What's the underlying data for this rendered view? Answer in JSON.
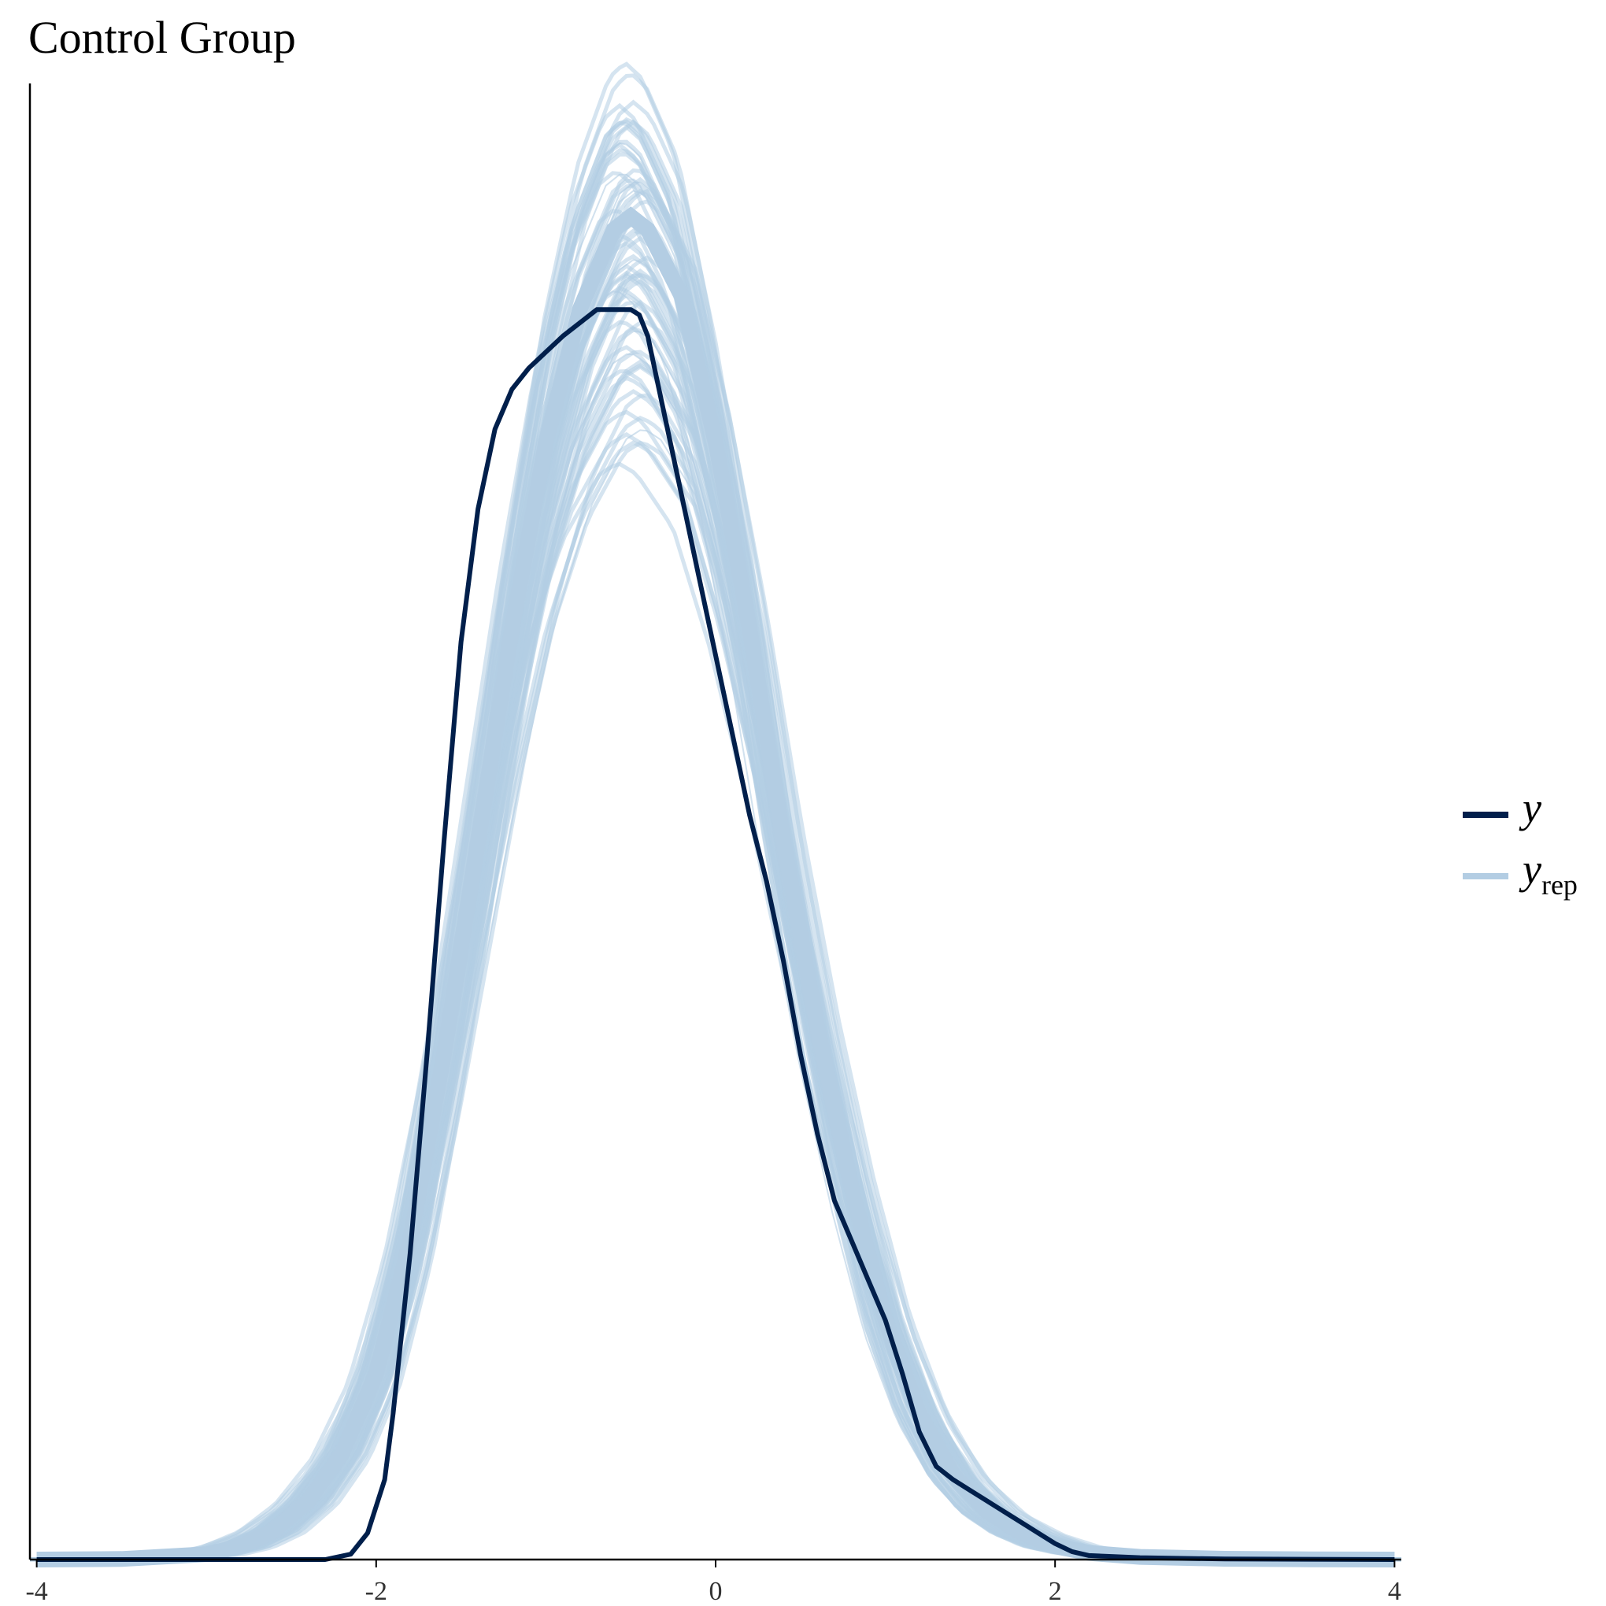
{
  "chart_data": {
    "type": "line",
    "title": "Control Group",
    "xlabel": "",
    "ylabel": "",
    "xlim": [
      -4.04,
      4.04
    ],
    "ylim": [
      0,
      0.555
    ],
    "x_ticks": [
      "-4",
      "-2",
      "0",
      "2",
      "4"
    ],
    "x_tick_values": [
      -4,
      -2,
      0,
      2,
      4
    ],
    "grid": false,
    "legend_position": "right",
    "series": [
      {
        "name": "y",
        "color": "#011f4b",
        "x": [
          -4.0,
          -3.0,
          -2.3,
          -2.15,
          -2.05,
          -1.95,
          -1.9,
          -1.8,
          -1.7,
          -1.6,
          -1.5,
          -1.4,
          -1.3,
          -1.2,
          -1.1,
          -1.0,
          -0.9,
          -0.8,
          -0.7,
          -0.6,
          -0.5,
          -0.45,
          -0.4,
          -0.35,
          -0.3,
          -0.2,
          -0.1,
          0.0,
          0.1,
          0.2,
          0.3,
          0.4,
          0.5,
          0.6,
          0.7,
          0.8,
          0.9,
          1.0,
          1.1,
          1.2,
          1.3,
          1.4,
          1.5,
          1.6,
          1.7,
          1.8,
          1.9,
          2.0,
          2.1,
          2.2,
          2.5,
          3.0,
          4.0
        ],
        "y": [
          0.0,
          0.0,
          0.0,
          0.002,
          0.01,
          0.03,
          0.055,
          0.115,
          0.19,
          0.27,
          0.345,
          0.395,
          0.425,
          0.44,
          0.448,
          0.454,
          0.46,
          0.465,
          0.47,
          0.47,
          0.47,
          0.468,
          0.46,
          0.445,
          0.43,
          0.4,
          0.37,
          0.34,
          0.31,
          0.28,
          0.255,
          0.225,
          0.19,
          0.16,
          0.135,
          0.12,
          0.105,
          0.09,
          0.07,
          0.048,
          0.035,
          0.03,
          0.026,
          0.022,
          0.018,
          0.014,
          0.01,
          0.006,
          0.003,
          0.0015,
          0.0007,
          0.0002,
          0.0
        ]
      },
      {
        "name": "yrep",
        "color": "#b3cde3",
        "x": [
          -4.0,
          -3.5,
          -3.0,
          -2.8,
          -2.6,
          -2.4,
          -2.2,
          -2.0,
          -1.8,
          -1.6,
          -1.4,
          -1.2,
          -1.0,
          -0.8,
          -0.6,
          -0.5,
          -0.4,
          -0.2,
          0.0,
          0.2,
          0.4,
          0.6,
          0.8,
          1.0,
          1.2,
          1.4,
          1.6,
          1.8,
          2.0,
          2.2,
          2.5,
          3.0,
          3.5,
          4.0
        ],
        "y": [
          0.0,
          0.0002,
          0.002,
          0.005,
          0.011,
          0.022,
          0.04,
          0.07,
          0.12,
          0.19,
          0.27,
          0.35,
          0.42,
          0.47,
          0.5,
          0.505,
          0.5,
          0.475,
          0.42,
          0.35,
          0.27,
          0.2,
          0.14,
          0.09,
          0.055,
          0.032,
          0.018,
          0.01,
          0.005,
          0.0025,
          0.001,
          0.0003,
          0.0001,
          0.0
        ]
      }
    ]
  },
  "legend": {
    "y_label": "y",
    "yrep_label": "y",
    "yrep_subscript": "rep"
  }
}
